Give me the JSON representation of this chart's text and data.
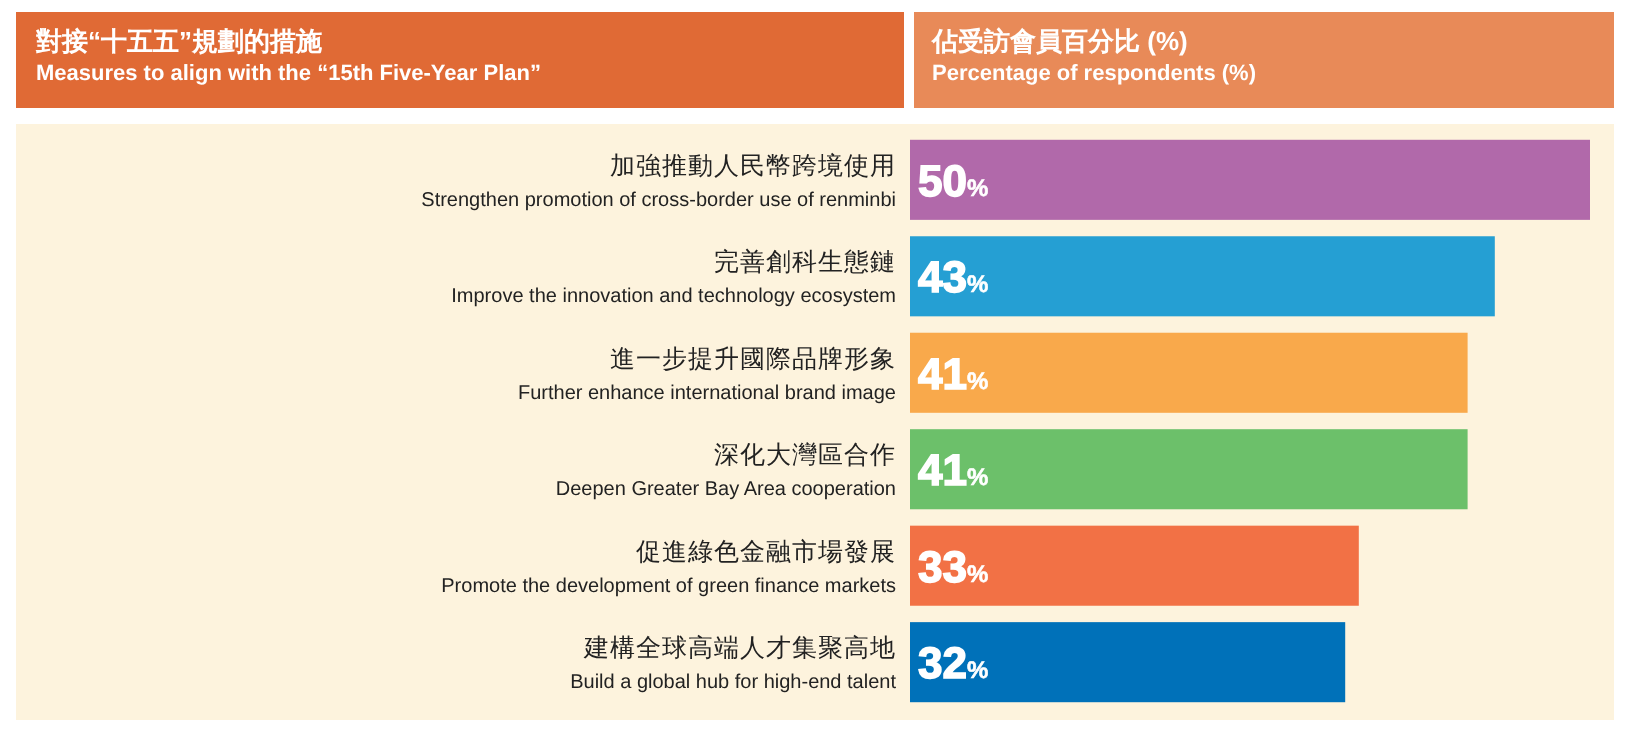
{
  "chart_data": {
    "type": "bar",
    "orientation": "horizontal",
    "ylabel": "對接“十五五”規劃的措施\nMeasures to align with the “15th Five-Year Plan”",
    "xlabel": "佔受訪會員百分比 (%)\nPercentage of respondents (%)",
    "categories": [
      "加強推動人民幣跨境使用\nStrengthen promotion of cross-border use of renminbi",
      "完善創科生態鏈\nImprove the innovation and technology ecosystem",
      "進一步提升國際品牌形象\nFurther enhance international brand image",
      "深化大灣區合作\nDeepen Greater Bay Area cooperation",
      "促進綠色金融市場發展\nPromote the development of green finance markets",
      "建構全球高端人才集聚高地\nBuild a global hub for high-end talent"
    ],
    "values": [
      50,
      43,
      41,
      41,
      33,
      32
    ],
    "colors": [
      "#b169aa",
      "#259fd3",
      "#f9a94b",
      "#6cc06a",
      "#f27145",
      "#0071b9"
    ],
    "value_labels": [
      "50%",
      "43%",
      "41%",
      "41%",
      "33%",
      "32%"
    ],
    "xlim": [
      0,
      50
    ]
  }
}
